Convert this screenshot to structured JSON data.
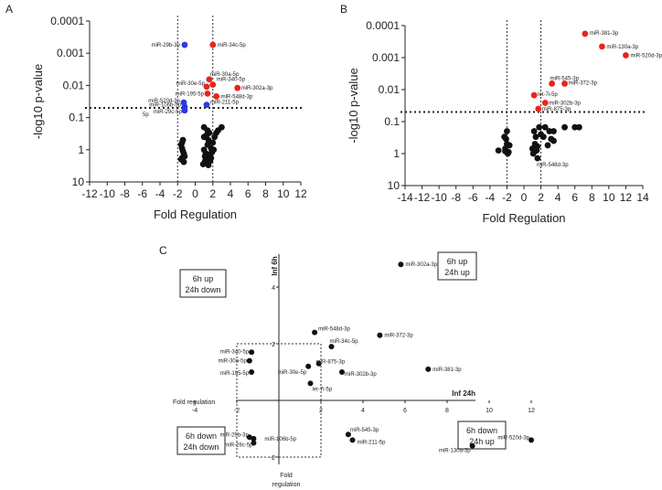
{
  "chart_data": [
    {
      "panel": "A",
      "type": "scatter",
      "title": "",
      "xlabel": "Fold Regulation",
      "ylabel": "-log10 p-value",
      "xlim": [
        -12,
        12
      ],
      "xticks": [
        "-12",
        "-10",
        "-8",
        "-6",
        "-4",
        "-2",
        "0",
        "2",
        "4",
        "6",
        "8",
        "10",
        "12"
      ],
      "ylim_log": [
        10,
        0.0001
      ],
      "yticks": [
        "0.0001",
        "0.001",
        "0.01",
        "0.1",
        "1",
        "10"
      ],
      "threshold_x": [
        -2,
        2
      ],
      "threshold_p": 0.05,
      "labeled_points": [
        {
          "name": "miR-29b-3p",
          "x": -1.2,
          "p": 0.00055,
          "color": "blue"
        },
        {
          "name": "miR-34c-5p",
          "x": 2.0,
          "p": 0.00055,
          "color": "red"
        },
        {
          "name": "miR-30a-5p",
          "x": 1.6,
          "p": 0.0065,
          "color": "red"
        },
        {
          "name": "miR-30e-5p",
          "x": 1.3,
          "p": 0.011,
          "color": "red"
        },
        {
          "name": "miR-340-5p",
          "x": 2.0,
          "p": 0.0095,
          "color": "red"
        },
        {
          "name": "miR-302a-3p",
          "x": 4.8,
          "p": 0.012,
          "color": "red"
        },
        {
          "name": "miR-195-5p",
          "x": 1.4,
          "p": 0.018,
          "color": "red"
        },
        {
          "name": "miR-548d-3p",
          "x": 2.4,
          "p": 0.022,
          "color": "red"
        },
        {
          "name": "miR-520d-3p",
          "x": -1.3,
          "p": 0.034,
          "color": "blue"
        },
        {
          "name": "miR-211-5p",
          "x": 1.3,
          "p": 0.04,
          "color": "blue"
        },
        {
          "name": "miR-106b-5p",
          "x": -1.2,
          "p": 0.046,
          "color": "blue"
        },
        {
          "name": "miR-29c-5p",
          "x": -1.2,
          "p": 0.06,
          "color": "blue"
        }
      ],
      "labels_text": {
        "miR-29b-3p": "miR-29b-3p",
        "miR-34c-5p": "miR-34c-5p",
        "miR-30a-5p": "miR-30a-5p",
        "miR-30e-5p": "miR-30e-5p",
        "miR-340-5p": "miR-340-5p",
        "miR-302a-3p": "miR-302a-3p",
        "miR-195-5p": "miR-195-5p",
        "miR-548d-3p": "miR-548d-3p",
        "miR-520d-3p": "miR-520d-3p",
        "miR-211-5p": "miR-211-5p",
        "miR-106b-5p": "miR-106b-5p",
        "miR-29c-5p": "miR-29c-5p",
        "extra": "5p"
      },
      "background_points": [
        [
          -1.5,
          0.9
        ],
        [
          -1.4,
          1.1
        ],
        [
          -1.3,
          1.3
        ],
        [
          -1.6,
          0.7
        ],
        [
          -1.2,
          1.6
        ],
        [
          -1.5,
          0.6
        ],
        [
          -1.4,
          0.5
        ],
        [
          -1.6,
          2.0
        ],
        [
          -1.3,
          2.4
        ],
        [
          -1.5,
          1.8
        ],
        [
          1.0,
          1.0
        ],
        [
          1.2,
          1.3
        ],
        [
          1.4,
          0.7
        ],
        [
          1.1,
          1.6
        ],
        [
          1.3,
          2.0
        ],
        [
          1.5,
          0.5
        ],
        [
          1.6,
          1.4
        ],
        [
          1.8,
          0.9
        ],
        [
          2.0,
          0.6
        ],
        [
          1.7,
          2.2
        ],
        [
          1.9,
          1.2
        ],
        [
          2.2,
          0.4
        ],
        [
          2.4,
          0.3
        ],
        [
          1.2,
          2.6
        ],
        [
          1.5,
          3.0
        ],
        [
          1.0,
          0.4
        ],
        [
          1.8,
          1.8
        ],
        [
          2.1,
          1.0
        ],
        [
          3.0,
          0.2
        ],
        [
          2.6,
          0.25
        ],
        [
          1.3,
          0.35
        ],
        [
          1.6,
          0.3
        ],
        [
          1.0,
          0.2
        ],
        [
          1.4,
          0.25
        ],
        [
          0.9,
          2.8
        ],
        [
          1.1,
          2.3
        ]
      ]
    },
    {
      "panel": "B",
      "type": "scatter",
      "title": "",
      "xlabel": "Fold Regulation",
      "ylabel": "-log10 p-value",
      "xlim": [
        -14,
        14
      ],
      "xticks": [
        "-14",
        "-12",
        "-10",
        "-8",
        "-6",
        "-4",
        "-2",
        "0",
        "2",
        "4",
        "6",
        "8",
        "10",
        "12",
        "14"
      ],
      "ylim_log": [
        10,
        0.0001
      ],
      "yticks": [
        "0.0001",
        "0.001",
        "0.01",
        "0.1",
        "1",
        "10"
      ],
      "threshold_x": [
        -2,
        2
      ],
      "threshold_p": 0.05,
      "labeled_points": [
        {
          "name": "miR-381-3p",
          "x": 7.2,
          "p": 0.00018,
          "color": "red"
        },
        {
          "name": "miR-130a-3p",
          "x": 9.2,
          "p": 0.00045,
          "color": "red"
        },
        {
          "name": "miR-520d-3p",
          "x": 12.0,
          "p": 0.00085,
          "color": "red"
        },
        {
          "name": "miR-545-3p",
          "x": 3.3,
          "p": 0.0065,
          "color": "red"
        },
        {
          "name": "miR-372-3p",
          "x": 4.8,
          "p": 0.0065,
          "color": "red"
        },
        {
          "name": "let-7i-5p",
          "x": 1.2,
          "p": 0.015,
          "color": "red"
        },
        {
          "name": "miR-302b-3p",
          "x": 2.5,
          "p": 0.026,
          "color": "red"
        },
        {
          "name": "miR-875-3p",
          "x": 1.7,
          "p": 0.04,
          "color": "red"
        },
        {
          "name": "miR-548d-3p",
          "x": 1.6,
          "p": 1.4,
          "color": "black"
        }
      ],
      "labels_text": {
        "miR-381-3p": "miR-381-3p",
        "miR-130a-3p": "miR-130a-3p",
        "miR-520d-3p": "miR-520d-3p",
        "miR-545-3p": "miR-545-3p",
        "miR-372-3p": "miR-372-3p",
        "let-7i-5p": "let-7i-5p",
        "miR-302b-3p": "miR-302b-3p",
        "miR-875-3p": "miR-875-3p",
        "miR-548d-3p": "miR-548d-3p"
      },
      "background_points": [
        [
          -2.2,
          0.7
        ],
        [
          -2.0,
          0.5
        ],
        [
          -1.8,
          0.9
        ],
        [
          -2.3,
          0.3
        ],
        [
          -2.0,
          0.2
        ],
        [
          -1.9,
          1.0
        ],
        [
          -2.2,
          0.85
        ],
        [
          -3.0,
          0.8
        ],
        [
          -1.7,
          0.55
        ],
        [
          -2.1,
          0.35
        ],
        [
          1.2,
          0.2
        ],
        [
          1.3,
          0.5
        ],
        [
          1.5,
          0.8
        ],
        [
          1.1,
          1.0
        ],
        [
          1.6,
          0.6
        ],
        [
          1.4,
          0.3
        ],
        [
          1.2,
          0.9
        ],
        [
          1.0,
          0.7
        ],
        [
          2.5,
          0.15
        ],
        [
          2.3,
          0.3
        ],
        [
          3.0,
          0.2
        ],
        [
          3.5,
          0.2
        ],
        [
          3.2,
          0.35
        ],
        [
          3.5,
          0.4
        ],
        [
          2.8,
          0.55
        ],
        [
          6.0,
          0.15
        ],
        [
          6.5,
          0.15
        ],
        [
          4.8,
          0.15
        ],
        [
          1.8,
          0.15
        ],
        [
          2.0,
          0.25
        ]
      ]
    },
    {
      "panel": "C",
      "type": "scatter",
      "title": "",
      "xlabel": "Inf 24h",
      "ylabel": "Inf 6h",
      "xlim": [
        -4,
        12
      ],
      "ylim": [
        -2,
        5
      ],
      "xticks": [
        "-4",
        "-2",
        "2",
        "4",
        "6",
        "8",
        "10",
        "12"
      ],
      "yticks": [
        "-2",
        "2",
        "4"
      ],
      "axis_label_x_left": "Fold regulation",
      "axis_label_y_bottom": [
        "Fold",
        "regulation"
      ],
      "quadrants": {
        "top_left": [
          "6h up",
          "24h down"
        ],
        "top_right": [
          "6h up",
          "24h up"
        ],
        "bottom_left": [
          "6h down",
          "24h down"
        ],
        "bottom_right": [
          "6h down",
          "24h up"
        ]
      },
      "points": [
        {
          "name": "miR-302a-3p",
          "x": 5.8,
          "y": 4.8
        },
        {
          "name": "miR-548d-3p",
          "x": 1.7,
          "y": 2.4
        },
        {
          "name": "miR-372-3p",
          "x": 4.8,
          "y": 2.3
        },
        {
          "name": "miR-34c-5p",
          "x": 2.5,
          "y": 1.9
        },
        {
          "name": "miR-340-5p",
          "x": -1.3,
          "y": 1.7
        },
        {
          "name": "miR-30a-5p",
          "x": -1.4,
          "y": 1.4
        },
        {
          "name": "miR-875-3p",
          "x": 1.9,
          "y": 1.3
        },
        {
          "name": "miR-30e-5p",
          "x": 1.4,
          "y": 1.2
        },
        {
          "name": "miR-381-3p",
          "x": 7.1,
          "y": 1.1
        },
        {
          "name": "miR-195-5p",
          "x": -1.3,
          "y": 1.0
        },
        {
          "name": "miR-302b-3p",
          "x": 3.0,
          "y": 1.0
        },
        {
          "name": "let-7i-5p",
          "x": 1.5,
          "y": 0.6
        },
        {
          "name": "miR-545-3p",
          "x": 3.3,
          "y": -1.2
        },
        {
          "name": "miR-211-5p",
          "x": 3.5,
          "y": -1.4
        },
        {
          "name": "miR-29b-3p",
          "x": -1.4,
          "y": -1.3
        },
        {
          "name": "miR-106b-5p",
          "x": -1.2,
          "y": -1.35
        },
        {
          "name": "miR-29c-5p",
          "x": -1.2,
          "y": -1.5
        },
        {
          "name": "miR-520d-3p",
          "x": 12.0,
          "y": -1.4
        },
        {
          "name": "miR-130a-3p",
          "x": 9.2,
          "y": -1.6
        }
      ]
    }
  ],
  "panels": {
    "a": "A",
    "b": "B",
    "c": "C"
  }
}
